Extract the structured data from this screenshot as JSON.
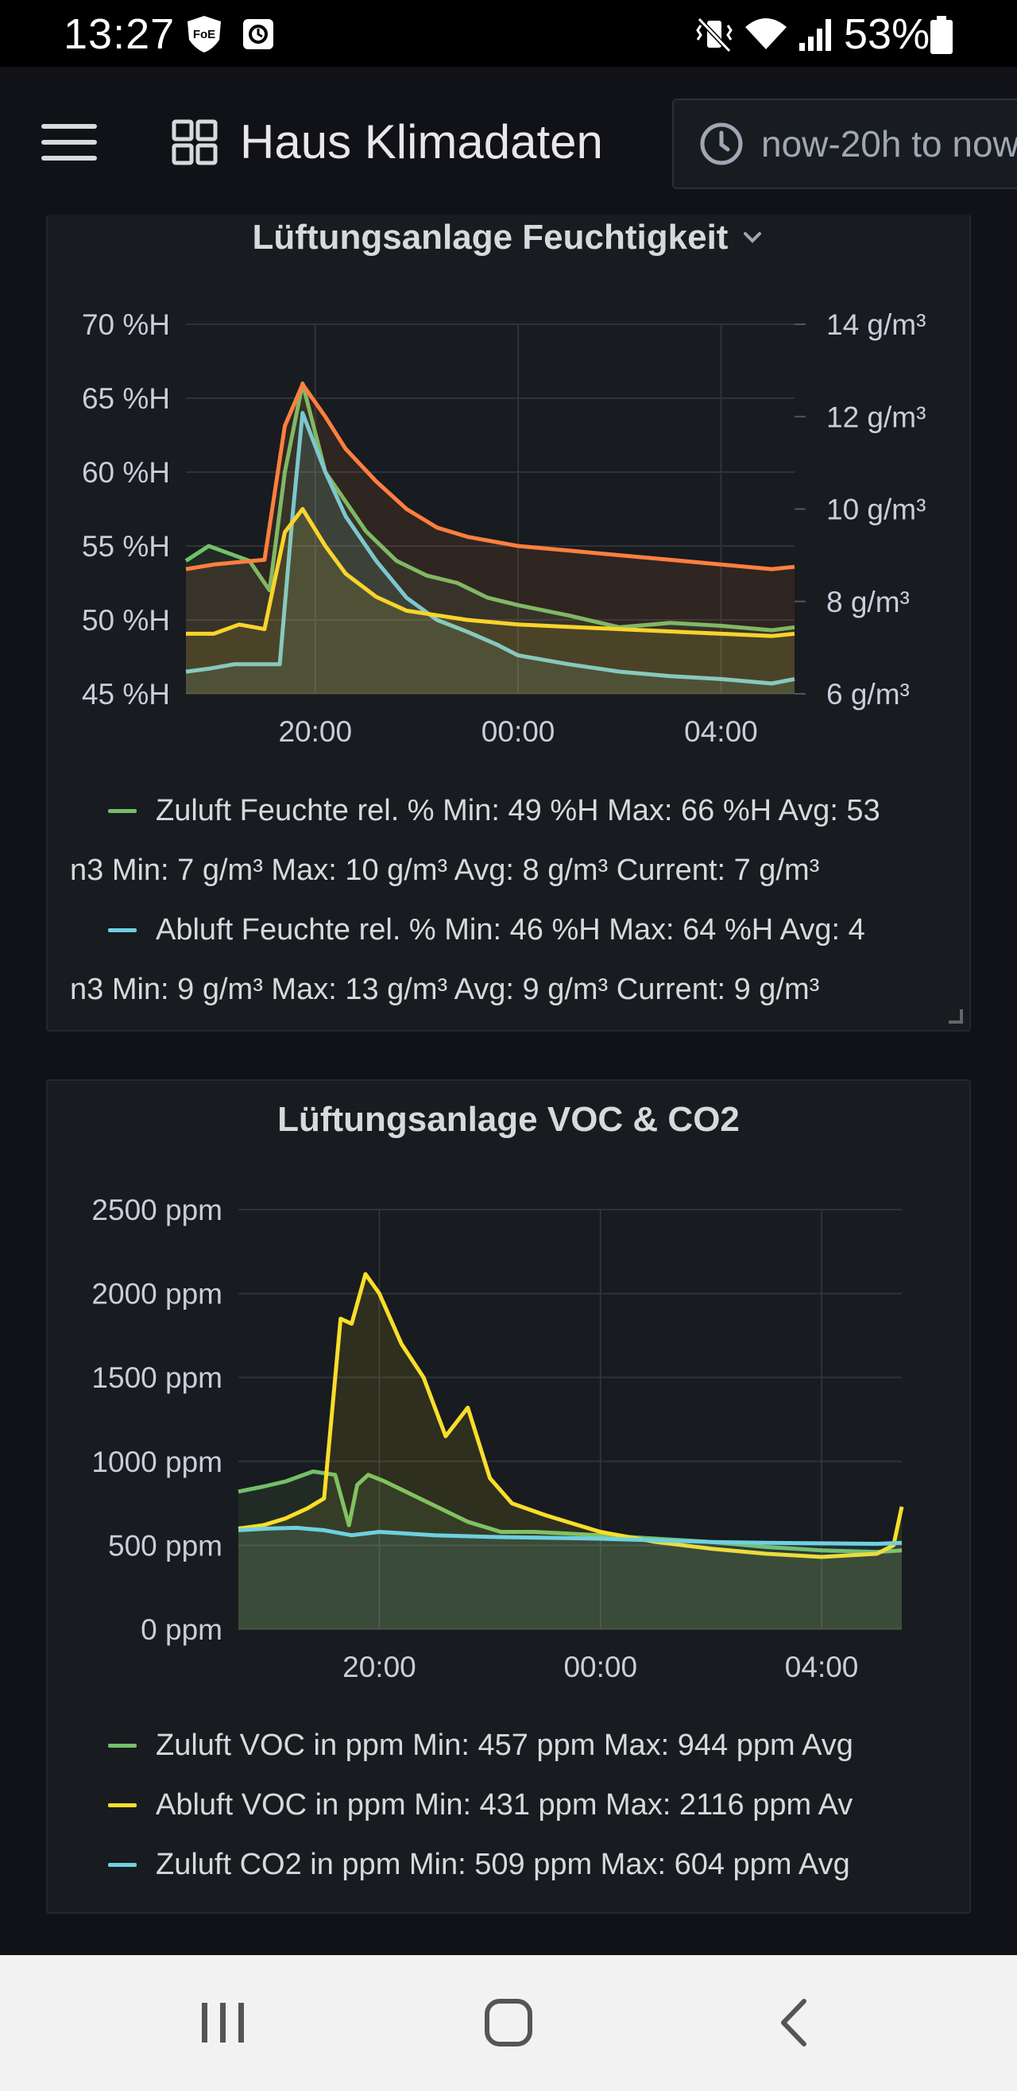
{
  "status_bar": {
    "time": "13:27",
    "battery": "53%",
    "app_badge": "FoE"
  },
  "nav": {
    "dashboard_title": "Haus Klimadaten",
    "time_range": "now-20h to now"
  },
  "panels": [
    {
      "title": "Lüftungsanlage Feuchtigkeit",
      "legend": [
        {
          "color": "#73bf69",
          "text": "Zuluft Feuchte rel. %  Min: 49 %H  Max: 66 %H  Avg: 53"
        },
        {
          "color": "",
          "text": "n3  Min: 7 g/m³  Max: 10 g/m³  Avg: 8 g/m³  Current: 7 g/m³"
        },
        {
          "color": "#6ed0e0",
          "text": "Abluft Feuchte rel. %  Min: 46 %H  Max: 64 %H  Avg: 4"
        },
        {
          "color": "",
          "text": "n3  Min: 9 g/m³  Max: 13 g/m³  Avg: 9 g/m³  Current: 9 g/m³"
        }
      ]
    },
    {
      "title": "Lüftungsanlage VOC & CO2",
      "legend": [
        {
          "color": "#73bf69",
          "text": "Zuluft VOC in ppm  Min: 457 ppm  Max: 944 ppm  Avg"
        },
        {
          "color": "#fade2a",
          "text": "Abluft VOC in ppm  Min: 431 ppm  Max: 2116 ppm  Av"
        },
        {
          "color": "#6ed0e0",
          "text": "Zuluft CO2 in ppm  Min: 509 ppm  Max: 604 ppm  Avg"
        }
      ]
    }
  ],
  "chart_data": [
    {
      "type": "line",
      "title": "Lüftungsanlage Feuchtigkeit",
      "x_ticks": [
        "20:00",
        "00:00",
        "04:00"
      ],
      "y_left_ticks": [
        "45 %H",
        "50 %H",
        "55 %H",
        "60 %H",
        "65 %H",
        "70 %H"
      ],
      "y_right_ticks": [
        "6 g/m³",
        "8 g/m³",
        "10 g/m³",
        "12 g/m³",
        "14 g/m³"
      ],
      "ylim_left": [
        45,
        70
      ],
      "ylim_right": [
        6,
        14
      ],
      "x_hours_range": [
        17.45,
        29.45
      ],
      "grid": true,
      "series": [
        {
          "name": "Zuluft Feuchte rel. %",
          "color": "#73bf69",
          "axis": "left",
          "x": [
            17.45,
            17.9,
            18.3,
            18.7,
            19.1,
            19.4,
            19.75,
            20.2,
            20.6,
            21.0,
            21.6,
            22.2,
            22.8,
            23.4,
            24.0,
            25.0,
            26.0,
            27.0,
            28.0,
            29.0,
            29.45
          ],
          "y": [
            54,
            55,
            54.5,
            54,
            52,
            60,
            66,
            60,
            58,
            56,
            54,
            53,
            52.5,
            51.5,
            51,
            50.3,
            49.5,
            49.8,
            49.6,
            49.3,
            49.5
          ]
        },
        {
          "name": "Abluft Feuchte rel. %",
          "color": "#6ed0e0",
          "axis": "left",
          "x": [
            17.45,
            17.9,
            18.4,
            18.9,
            19.3,
            19.55,
            19.75,
            20.2,
            20.6,
            21.2,
            21.8,
            22.4,
            23.0,
            23.6,
            24.0,
            25.0,
            26.0,
            27.0,
            28.0,
            29.0,
            29.45
          ],
          "y": [
            46.5,
            46.7,
            47,
            47,
            47,
            57,
            64,
            60,
            57,
            54,
            51.5,
            50,
            49.2,
            48.3,
            47.6,
            47,
            46.5,
            46.2,
            46,
            45.7,
            46
          ]
        },
        {
          "name": "",
          "color": "#fade2a",
          "axis": "right",
          "x": [
            17.45,
            18.0,
            18.5,
            19.0,
            19.4,
            19.75,
            20.2,
            20.6,
            21.2,
            21.8,
            22.4,
            23.0,
            24.0,
            25.0,
            26.0,
            27.0,
            28.0,
            29.0,
            29.45
          ],
          "y": [
            7.3,
            7.3,
            7.5,
            7.4,
            9.5,
            10.0,
            9.2,
            8.6,
            8.1,
            7.8,
            7.7,
            7.6,
            7.5,
            7.45,
            7.4,
            7.35,
            7.3,
            7.25,
            7.3
          ]
        },
        {
          "name": "",
          "color": "#ff7f3f",
          "axis": "right",
          "x": [
            17.45,
            18.0,
            18.5,
            19.0,
            19.4,
            19.75,
            20.2,
            20.6,
            21.2,
            21.8,
            22.4,
            23.0,
            24.0,
            25.0,
            26.0,
            27.0,
            28.0,
            29.0,
            29.45
          ],
          "y": [
            8.7,
            8.8,
            8.85,
            8.9,
            11.8,
            12.7,
            12.0,
            11.3,
            10.6,
            10.0,
            9.6,
            9.4,
            9.2,
            9.1,
            9.0,
            8.9,
            8.8,
            8.7,
            8.75
          ]
        }
      ]
    },
    {
      "type": "line",
      "title": "Lüftungsanlage VOC & CO2",
      "x_ticks": [
        "20:00",
        "00:00",
        "04:00"
      ],
      "y_ticks": [
        "0 ppm",
        "500 ppm",
        "1000 ppm",
        "1500 ppm",
        "2000 ppm",
        "2500 ppm"
      ],
      "ylim": [
        0,
        2500
      ],
      "x_hours_range": [
        17.45,
        29.45
      ],
      "grid": true,
      "series": [
        {
          "name": "Zuluft VOC in ppm",
          "color": "#73bf69",
          "x": [
            17.45,
            17.9,
            18.3,
            18.8,
            19.2,
            19.45,
            19.6,
            19.8,
            20.1,
            20.6,
            21.1,
            21.6,
            22.2,
            22.8,
            23.4,
            24.0,
            25.0,
            26.0,
            27.0,
            28.0,
            29.0,
            29.45
          ],
          "y": [
            820,
            850,
            880,
            940,
            920,
            620,
            860,
            920,
            880,
            800,
            720,
            640,
            580,
            580,
            570,
            560,
            540,
            520,
            490,
            470,
            460,
            470
          ]
        },
        {
          "name": "Abluft VOC in ppm",
          "color": "#fade2a",
          "x": [
            17.45,
            17.9,
            18.3,
            18.7,
            19.0,
            19.3,
            19.5,
            19.75,
            20.0,
            20.4,
            20.8,
            21.2,
            21.6,
            22.0,
            22.4,
            23.0,
            23.6,
            24.0,
            25.0,
            26.0,
            27.0,
            28.0,
            29.0,
            29.3,
            29.45
          ],
          "y": [
            600,
            620,
            660,
            720,
            780,
            1850,
            1820,
            2116,
            2000,
            1700,
            1500,
            1150,
            1320,
            900,
            750,
            680,
            620,
            580,
            520,
            480,
            450,
            431,
            450,
            500,
            730
          ]
        },
        {
          "name": "Zuluft CO2 in ppm",
          "color": "#6ed0e0",
          "x": [
            17.45,
            18.0,
            18.5,
            19.0,
            19.5,
            20.0,
            21.0,
            22.0,
            23.0,
            24.0,
            25.0,
            26.0,
            27.0,
            28.0,
            29.0,
            29.45
          ],
          "y": [
            590,
            600,
            604,
            590,
            560,
            580,
            560,
            550,
            545,
            540,
            530,
            520,
            515,
            512,
            509,
            515
          ]
        }
      ]
    }
  ]
}
